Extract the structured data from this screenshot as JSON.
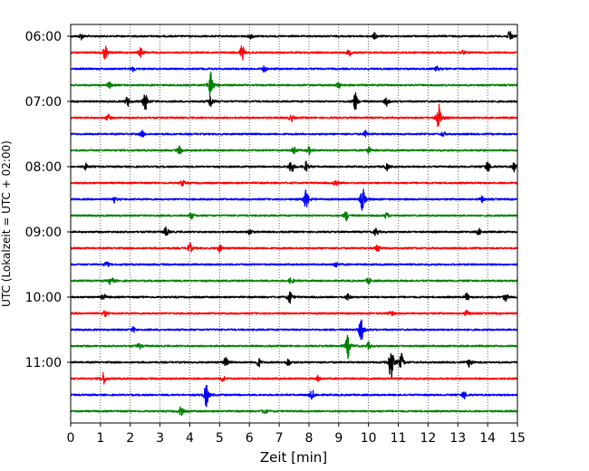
{
  "chart_data": {
    "type": "line",
    "title": "",
    "xlabel": "Zeit  [min]",
    "ylabel": "UTC (Lokalzeit = UTC + 02:00)",
    "xlim": [
      0,
      15
    ],
    "x_ticks": [
      0,
      1,
      2,
      3,
      4,
      5,
      6,
      7,
      8,
      9,
      10,
      11,
      12,
      13,
      14,
      15
    ],
    "y_tick_labels": [
      "06:00",
      "07:00",
      "08:00",
      "09:00",
      "10:00",
      "11:00"
    ],
    "grid": "vertical dotted lines at each minute",
    "trace_colors": [
      "#000000",
      "#ff0000",
      "#0000ff",
      "#008000"
    ],
    "series": [
      {
        "start": "06:00",
        "color": "#000000",
        "events": [
          [
            0.35,
            0.3
          ],
          [
            6.05,
            0.25
          ],
          [
            10.2,
            0.3
          ],
          [
            14.75,
            0.6
          ]
        ]
      },
      {
        "start": "06:15",
        "color": "#ff0000",
        "events": [
          [
            1.15,
            0.7
          ],
          [
            2.35,
            0.5
          ],
          [
            5.75,
            0.8
          ],
          [
            9.35,
            0.3
          ],
          [
            13.15,
            0.3
          ]
        ]
      },
      {
        "start": "06:30",
        "color": "#0000ff",
        "events": [
          [
            2.1,
            0.25
          ],
          [
            6.5,
            0.3
          ],
          [
            12.3,
            0.25
          ]
        ]
      },
      {
        "start": "06:45",
        "color": "#008000",
        "events": [
          [
            1.3,
            0.3
          ],
          [
            4.7,
            1.6
          ],
          [
            9.0,
            0.3
          ]
        ]
      },
      {
        "start": "07:00",
        "color": "#000000",
        "events": [
          [
            1.9,
            0.5
          ],
          [
            2.5,
            0.9
          ],
          [
            4.7,
            0.6
          ],
          [
            9.55,
            0.9
          ],
          [
            10.6,
            0.4
          ]
        ]
      },
      {
        "start": "07:15",
        "color": "#ff0000",
        "events": [
          [
            1.25,
            0.3
          ],
          [
            7.4,
            0.35
          ],
          [
            12.35,
            1.4
          ]
        ]
      },
      {
        "start": "07:30",
        "color": "#0000ff",
        "events": [
          [
            2.4,
            0.3
          ],
          [
            9.9,
            0.3
          ],
          [
            12.5,
            0.25
          ]
        ]
      },
      {
        "start": "07:45",
        "color": "#008000",
        "events": [
          [
            3.65,
            0.4
          ],
          [
            7.5,
            0.4
          ],
          [
            8.0,
            0.35
          ],
          [
            10.0,
            0.35
          ]
        ]
      },
      {
        "start": "08:00",
        "color": "#000000",
        "events": [
          [
            0.5,
            0.3
          ],
          [
            7.4,
            0.8
          ],
          [
            7.9,
            0.5
          ],
          [
            10.6,
            0.4
          ],
          [
            14.0,
            0.6
          ],
          [
            14.9,
            0.5
          ]
        ]
      },
      {
        "start": "08:15",
        "color": "#ff0000",
        "events": [
          [
            3.75,
            0.3
          ],
          [
            8.9,
            0.3
          ]
        ]
      },
      {
        "start": "08:30",
        "color": "#0000ff",
        "events": [
          [
            1.45,
            0.3
          ],
          [
            7.9,
            1.3
          ],
          [
            9.8,
            1.3
          ],
          [
            13.8,
            0.3
          ]
        ]
      },
      {
        "start": "08:45",
        "color": "#008000",
        "events": [
          [
            4.05,
            0.3
          ],
          [
            9.25,
            0.5
          ],
          [
            10.6,
            0.3
          ]
        ]
      },
      {
        "start": "09:00",
        "color": "#000000",
        "events": [
          [
            3.2,
            0.5
          ],
          [
            6.0,
            0.3
          ],
          [
            10.25,
            0.4
          ],
          [
            13.7,
            0.3
          ]
        ]
      },
      {
        "start": "09:15",
        "color": "#ff0000",
        "events": [
          [
            4.0,
            0.5
          ],
          [
            5.0,
            0.35
          ],
          [
            10.3,
            0.35
          ]
        ]
      },
      {
        "start": "09:30",
        "color": "#0000ff",
        "events": [
          [
            1.2,
            0.3
          ],
          [
            8.9,
            0.3
          ]
        ]
      },
      {
        "start": "09:45",
        "color": "#008000",
        "events": [
          [
            1.35,
            0.5
          ],
          [
            7.4,
            0.35
          ],
          [
            10.0,
            0.3
          ]
        ]
      },
      {
        "start": "10:00",
        "color": "#000000",
        "events": [
          [
            1.1,
            0.3
          ],
          [
            7.35,
            0.7
          ],
          [
            9.3,
            0.35
          ],
          [
            13.3,
            0.4
          ],
          [
            14.6,
            0.4
          ]
        ]
      },
      {
        "start": "10:15",
        "color": "#ff0000",
        "events": [
          [
            1.15,
            0.3
          ],
          [
            10.75,
            0.3
          ],
          [
            13.3,
            0.3
          ]
        ]
      },
      {
        "start": "10:30",
        "color": "#0000ff",
        "events": [
          [
            2.1,
            0.25
          ],
          [
            9.75,
            1.2
          ]
        ]
      },
      {
        "start": "10:45",
        "color": "#008000",
        "events": [
          [
            2.3,
            0.3
          ],
          [
            9.3,
            1.2
          ],
          [
            10.0,
            0.35
          ]
        ]
      },
      {
        "start": "11:00",
        "color": "#000000",
        "events": [
          [
            5.2,
            0.5
          ],
          [
            6.3,
            0.5
          ],
          [
            7.3,
            0.4
          ],
          [
            10.75,
            2.0
          ],
          [
            11.1,
            0.8
          ],
          [
            13.4,
            0.5
          ]
        ]
      },
      {
        "start": "11:15",
        "color": "#ff0000",
        "events": [
          [
            1.1,
            0.6
          ],
          [
            5.1,
            0.3
          ],
          [
            8.3,
            0.3
          ]
        ]
      },
      {
        "start": "11:30",
        "color": "#0000ff",
        "events": [
          [
            4.55,
            1.2
          ],
          [
            8.1,
            0.5
          ],
          [
            13.2,
            0.4
          ]
        ]
      },
      {
        "start": "11:45",
        "color": "#008000",
        "events": [
          [
            3.7,
            0.5
          ],
          [
            6.5,
            0.3
          ]
        ]
      }
    ]
  }
}
